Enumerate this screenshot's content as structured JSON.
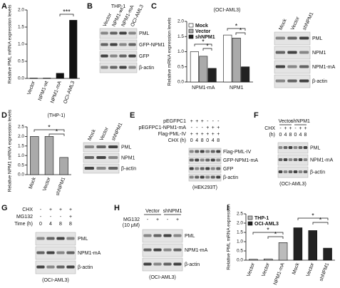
{
  "panel_labels": [
    "A",
    "B",
    "C",
    "D",
    "E",
    "F",
    "G",
    "H",
    "I"
  ],
  "chart_data": [
    {
      "type": "bar",
      "y_label": "Relative PML mRNA expression levels",
      "categories": [
        "Vector",
        "NPM1-wt",
        "NPM1-mA",
        "OCI-AML3"
      ],
      "values": [
        0.01,
        0.01,
        0.15,
        1.7
      ],
      "color": "#111111",
      "ylim": [
        0,
        2
      ],
      "yticks": [
        {
          "value": 0,
          "label": "0.0"
        },
        0.5,
        {
          "value": 1,
          "label": "1.0"
        },
        1.5,
        {
          "value": 2,
          "label": "2.0"
        }
      ],
      "annotations": [
        "***"
      ]
    },
    {
      "type": "bar",
      "title": "(OCI-AML3)",
      "y_label": "Relative mRNA expression levels",
      "categories": [
        "NPM1-mA",
        "NPM1"
      ],
      "series": [
        {
          "name": "Mock",
          "color": "#ffffff",
          "values": [
            1.0,
            1.55
          ]
        },
        {
          "name": "Vector",
          "color": "#aaaaaa",
          "values": [
            0.85,
            1.45
          ]
        },
        {
          "name": "shNPM1",
          "color": "#222222",
          "values": [
            0.45,
            0.5
          ]
        }
      ],
      "ylim": [
        0,
        2
      ],
      "yticks": [
        {
          "value": 0,
          "label": "0.0"
        },
        0.5,
        {
          "value": 1,
          "label": "1.0"
        },
        1.5,
        {
          "value": 2,
          "label": "2.0"
        }
      ],
      "legend": "upper left",
      "annotations": [
        "*",
        "*",
        "*",
        "*"
      ]
    },
    {
      "type": "bar",
      "title": "(THP-1)",
      "y_label": "Relative NPM1 mRNA expression levels",
      "categories": [
        "Mock",
        "Vector",
        "shNPM1"
      ],
      "values": [
        2.0,
        2.0,
        0.9
      ],
      "color": "#aaaaaa",
      "ylim": [
        0,
        2.5
      ],
      "yticks": [
        {
          "value": 0,
          "label": "0.0"
        },
        0.5,
        {
          "value": 1,
          "label": "1.0"
        },
        1.5,
        {
          "value": 2,
          "label": "2.0"
        },
        2.5
      ],
      "annotations": [
        "*",
        "*"
      ]
    },
    {
      "type": "bar",
      "y_label": "Relative PML mRNA expression",
      "categories": [
        "Vector",
        "Vector",
        "NPM1-mA",
        "Mock",
        "Vector",
        "shNPM1"
      ],
      "series": [
        {
          "name": "THP-1",
          "color": "#bbbbbb",
          "values": [
            0.05,
            0.07,
            0.95,
            null,
            null,
            null
          ]
        },
        {
          "name": "OCI-AML3",
          "color": "#222222",
          "values": [
            null,
            null,
            null,
            1.75,
            1.6,
            0.65
          ]
        }
      ],
      "ylim": [
        0,
        2.5
      ],
      "yticks": [
        {
          "value": 0,
          "label": "0.0"
        },
        0.5,
        {
          "value": 1,
          "label": "1.0"
        },
        1.5,
        {
          "value": 2,
          "label": "2.0"
        },
        2.5
      ],
      "legend": "upper left",
      "annotations": [
        "*",
        "*",
        "*",
        "*"
      ]
    }
  ],
  "blots": {
    "B": {
      "title": "THP-1",
      "lanes": [
        "Vector",
        "NPM1-wt",
        "NPM1-mA",
        "OCI-AML3"
      ],
      "bands": [
        "PML",
        "GFP-NPM1",
        "GFP",
        "β-actin"
      ]
    },
    "C": {
      "lanes": [
        "Mock",
        "Vector",
        "shNPM1"
      ],
      "bands": [
        "PML",
        "NPM1",
        "NPM1-mA",
        "β-actin"
      ]
    },
    "D": {
      "lanes": [
        "Mock",
        "Vector",
        "shNPM1"
      ],
      "bands": [
        "PML",
        "NPM1",
        "β-actin"
      ]
    },
    "E": {
      "rows": [
        {
          "label": "pEGFPC1",
          "marks": [
            "+",
            "+",
            "+",
            "-",
            "-",
            "-"
          ]
        },
        {
          "label": "pEGFPC1-NPM1-mA",
          "marks": [
            "-",
            "-",
            "-",
            "+",
            "+",
            "+"
          ]
        },
        {
          "label": "Flag-PML-IV",
          "marks": [
            "+",
            "+",
            "+",
            "+",
            "+",
            "+"
          ]
        },
        {
          "label": "CHX (h)",
          "marks": [
            "0",
            "4",
            "8",
            "0",
            "4",
            "8"
          ]
        }
      ],
      "bands": [
        "Flag-PML-IV",
        "GFP-NPM1-mA",
        "GFP",
        "β-actin"
      ],
      "caption": "(HEK293T)"
    },
    "F": {
      "groups": [
        "Vector",
        "shNPM1"
      ],
      "rows": [
        {
          "label": "CHX",
          "marks": [
            "-",
            "+",
            "+",
            "-",
            "+",
            "+"
          ]
        },
        {
          "label": "(h)",
          "marks": [
            "0",
            "4",
            "8",
            "0",
            "4",
            "8"
          ]
        }
      ],
      "bands": [
        "PML",
        "NPM1-mA",
        "β-actin"
      ],
      "caption": "(OCI-AML3)"
    },
    "G": {
      "rows": [
        {
          "label": "CHX",
          "marks": [
            "-",
            "+",
            "+",
            "+"
          ]
        },
        {
          "label": "MG132",
          "marks": [
            "-",
            "-",
            "-",
            "+"
          ]
        },
        {
          "label": "Time (h)",
          "marks": [
            "0",
            "4",
            "8",
            "8"
          ]
        }
      ],
      "bands": [
        "PML",
        "NPM1-mA",
        "β-actin"
      ],
      "caption": "(OCI-AML3)"
    },
    "H": {
      "groups": [
        "Vector",
        "shNPM1"
      ],
      "rows": [
        {
          "label": "MG132",
          "marks": [
            "-",
            "+",
            "-",
            "+"
          ]
        }
      ],
      "note": "(10 μM)",
      "bands": [
        "PML",
        "NPM1-mA",
        "β-actin"
      ],
      "caption": "(OCI-AML3)"
    }
  }
}
